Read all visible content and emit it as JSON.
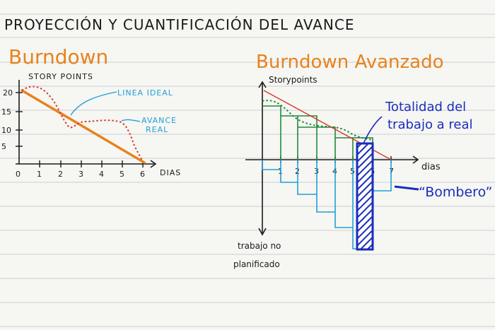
{
  "page_title": "PROYECCIÓN Y CUANTIFICACIÓN DEL AVANCE",
  "burndown": {
    "title": "Burndown",
    "y_axis_label": "STORY POINTS",
    "x_axis_label": "DIAS",
    "y_ticks": [
      "20",
      "15",
      "10",
      "5"
    ],
    "x_ticks": [
      "0",
      "1",
      "2",
      "3",
      "4",
      "5",
      "6"
    ],
    "ideal_label": "LINEA IDEAL",
    "real_label_line1": "AVANCE",
    "real_label_line2": "REAL"
  },
  "advanced": {
    "title": "Burndown Avanzado",
    "y_axis_label": "Storypoints",
    "x_axis_label": "dias",
    "x_ticks": [
      "1",
      "2",
      "3",
      "4",
      "5",
      "6",
      "7"
    ],
    "total_work_line1": "Totalidad del",
    "total_work_line2": "trabajo a real",
    "bomb_label": "“Bombero”",
    "unplanned_line1": "trabajo no",
    "unplanned_line2": "planificado"
  },
  "colors": {
    "ink": "#1a1a1a",
    "orange": "#e8821e",
    "green": "#1f8a3a",
    "red": "#d63a2a",
    "blue": "#1a2dbf",
    "cyan": "#1ea0d8",
    "teal": "#1f8aa8",
    "ruled": "#c9cdd6",
    "margin": "#b9c3d8"
  }
}
